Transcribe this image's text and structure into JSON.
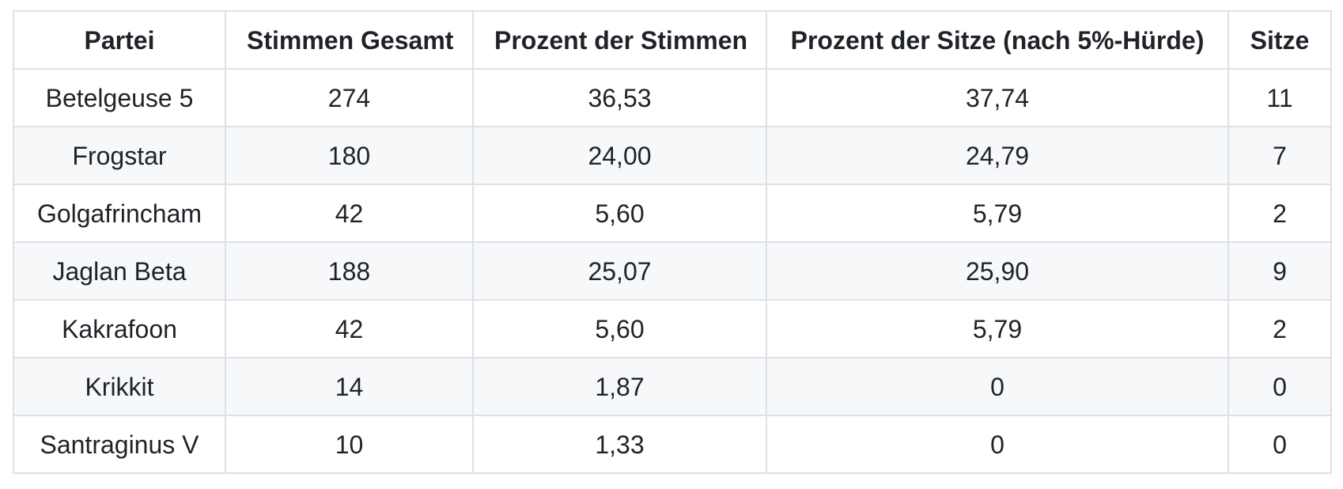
{
  "chart_data": {
    "type": "table",
    "title": "",
    "columns": [
      "Partei",
      "Stimmen Gesamt",
      "Prozent der Stimmen",
      "Prozent der Sitze (nach 5%-Hürde)",
      "Sitze"
    ],
    "rows": [
      [
        "Betelgeuse 5",
        "274",
        "36,53",
        "37,74",
        "11"
      ],
      [
        "Frogstar",
        "180",
        "24,00",
        "24,79",
        "7"
      ],
      [
        "Golgafrincham",
        "42",
        "5,60",
        "5,79",
        "2"
      ],
      [
        "Jaglan Beta",
        "188",
        "25,07",
        "25,90",
        "9"
      ],
      [
        "Kakrafoon",
        "42",
        "5,60",
        "5,79",
        "2"
      ],
      [
        "Krikkit",
        "14",
        "1,87",
        "0",
        "0"
      ],
      [
        "Santraginus V",
        "10",
        "1,33",
        "0",
        "0"
      ]
    ],
    "layout": {
      "striped_rows": "even data rows shaded",
      "alignment": "center",
      "grid": "full cell borders"
    }
  },
  "colors": {
    "text": "#1f2328",
    "border": "#dde1e6",
    "stripe_background": "#f6f8fa",
    "row_background": "#ffffff",
    "page_background": "#ffffff"
  }
}
